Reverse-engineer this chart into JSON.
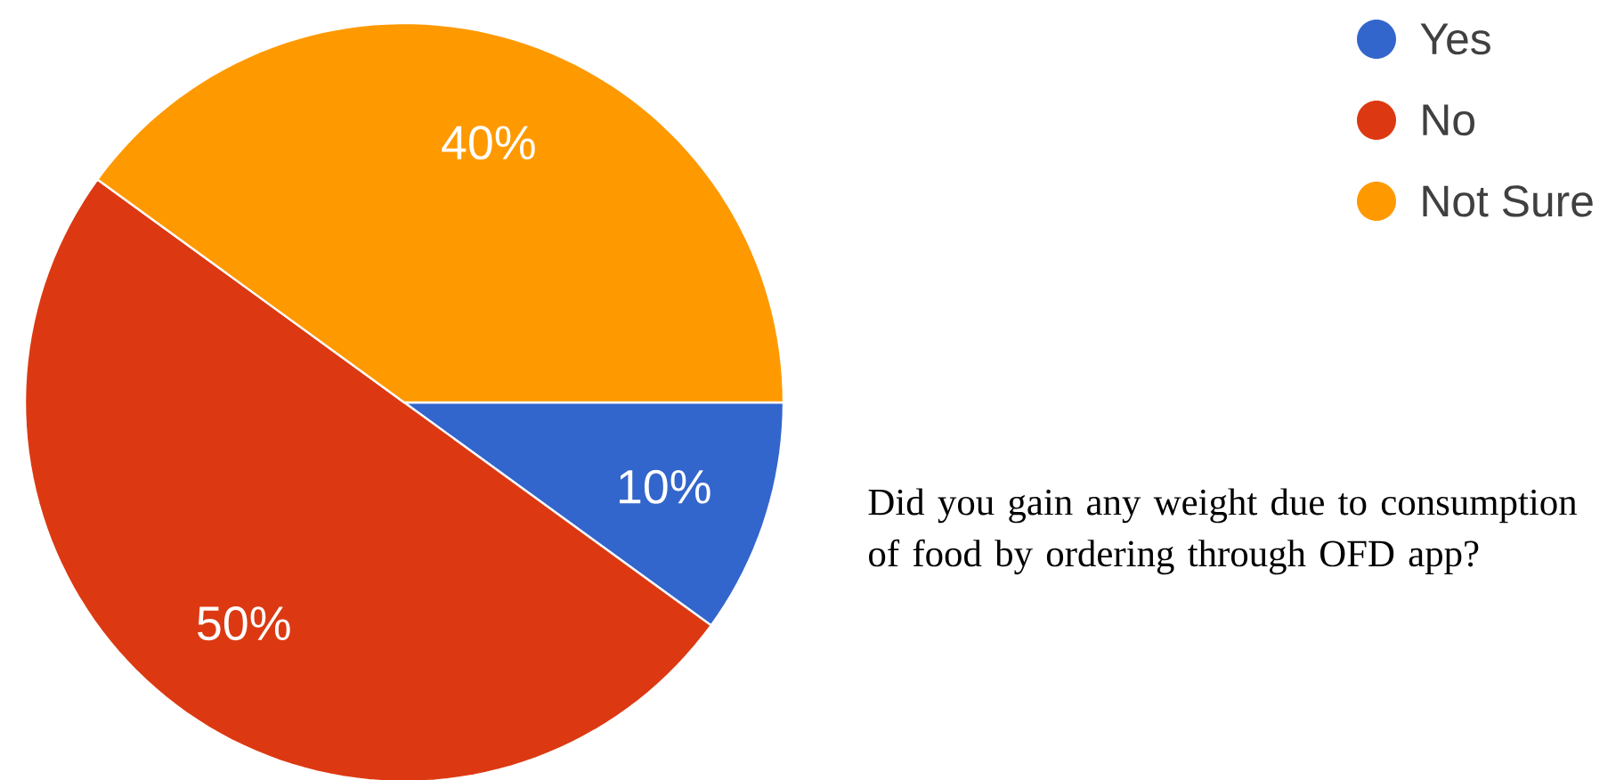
{
  "chart_data": {
    "type": "pie",
    "categories": [
      "Yes",
      "No",
      "Not Sure"
    ],
    "values": [
      10,
      50,
      40
    ],
    "colors": [
      "#3366cc",
      "#dc3912",
      "#ff9900"
    ],
    "value_labels": [
      "10%",
      "50%",
      "40%"
    ],
    "legend": "top right",
    "annotations": [
      "Did you gain any weight due to consumption of food by ordering through OFD app?"
    ]
  }
}
